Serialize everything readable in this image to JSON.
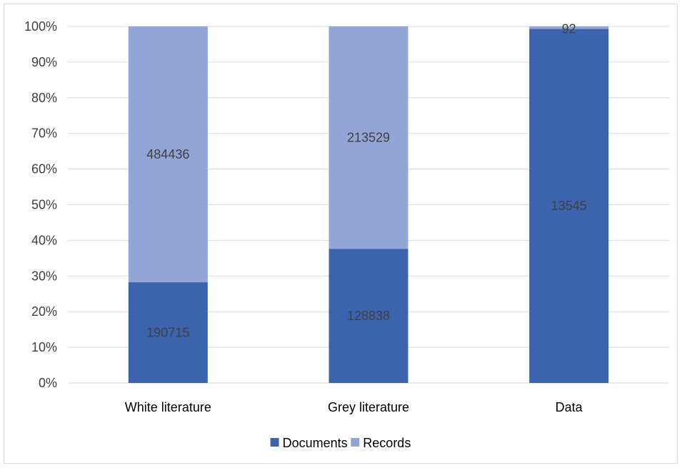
{
  "chart_data": {
    "type": "bar",
    "stacked": true,
    "normalized": true,
    "categories": [
      "White literature",
      "Grey literature",
      "Data"
    ],
    "series": [
      {
        "name": "Documents",
        "values": [
          190715,
          128838,
          13545
        ],
        "color": "#3c63ad"
      },
      {
        "name": "Records",
        "values": [
          484436,
          213529,
          92
        ],
        "color": "#91a5d6"
      }
    ],
    "y_ticks": [
      "0%",
      "10%",
      "20%",
      "30%",
      "40%",
      "50%",
      "60%",
      "70%",
      "80%",
      "90%",
      "100%"
    ],
    "ylim": [
      0,
      100
    ],
    "grid": true,
    "legend_position": "bottom"
  }
}
